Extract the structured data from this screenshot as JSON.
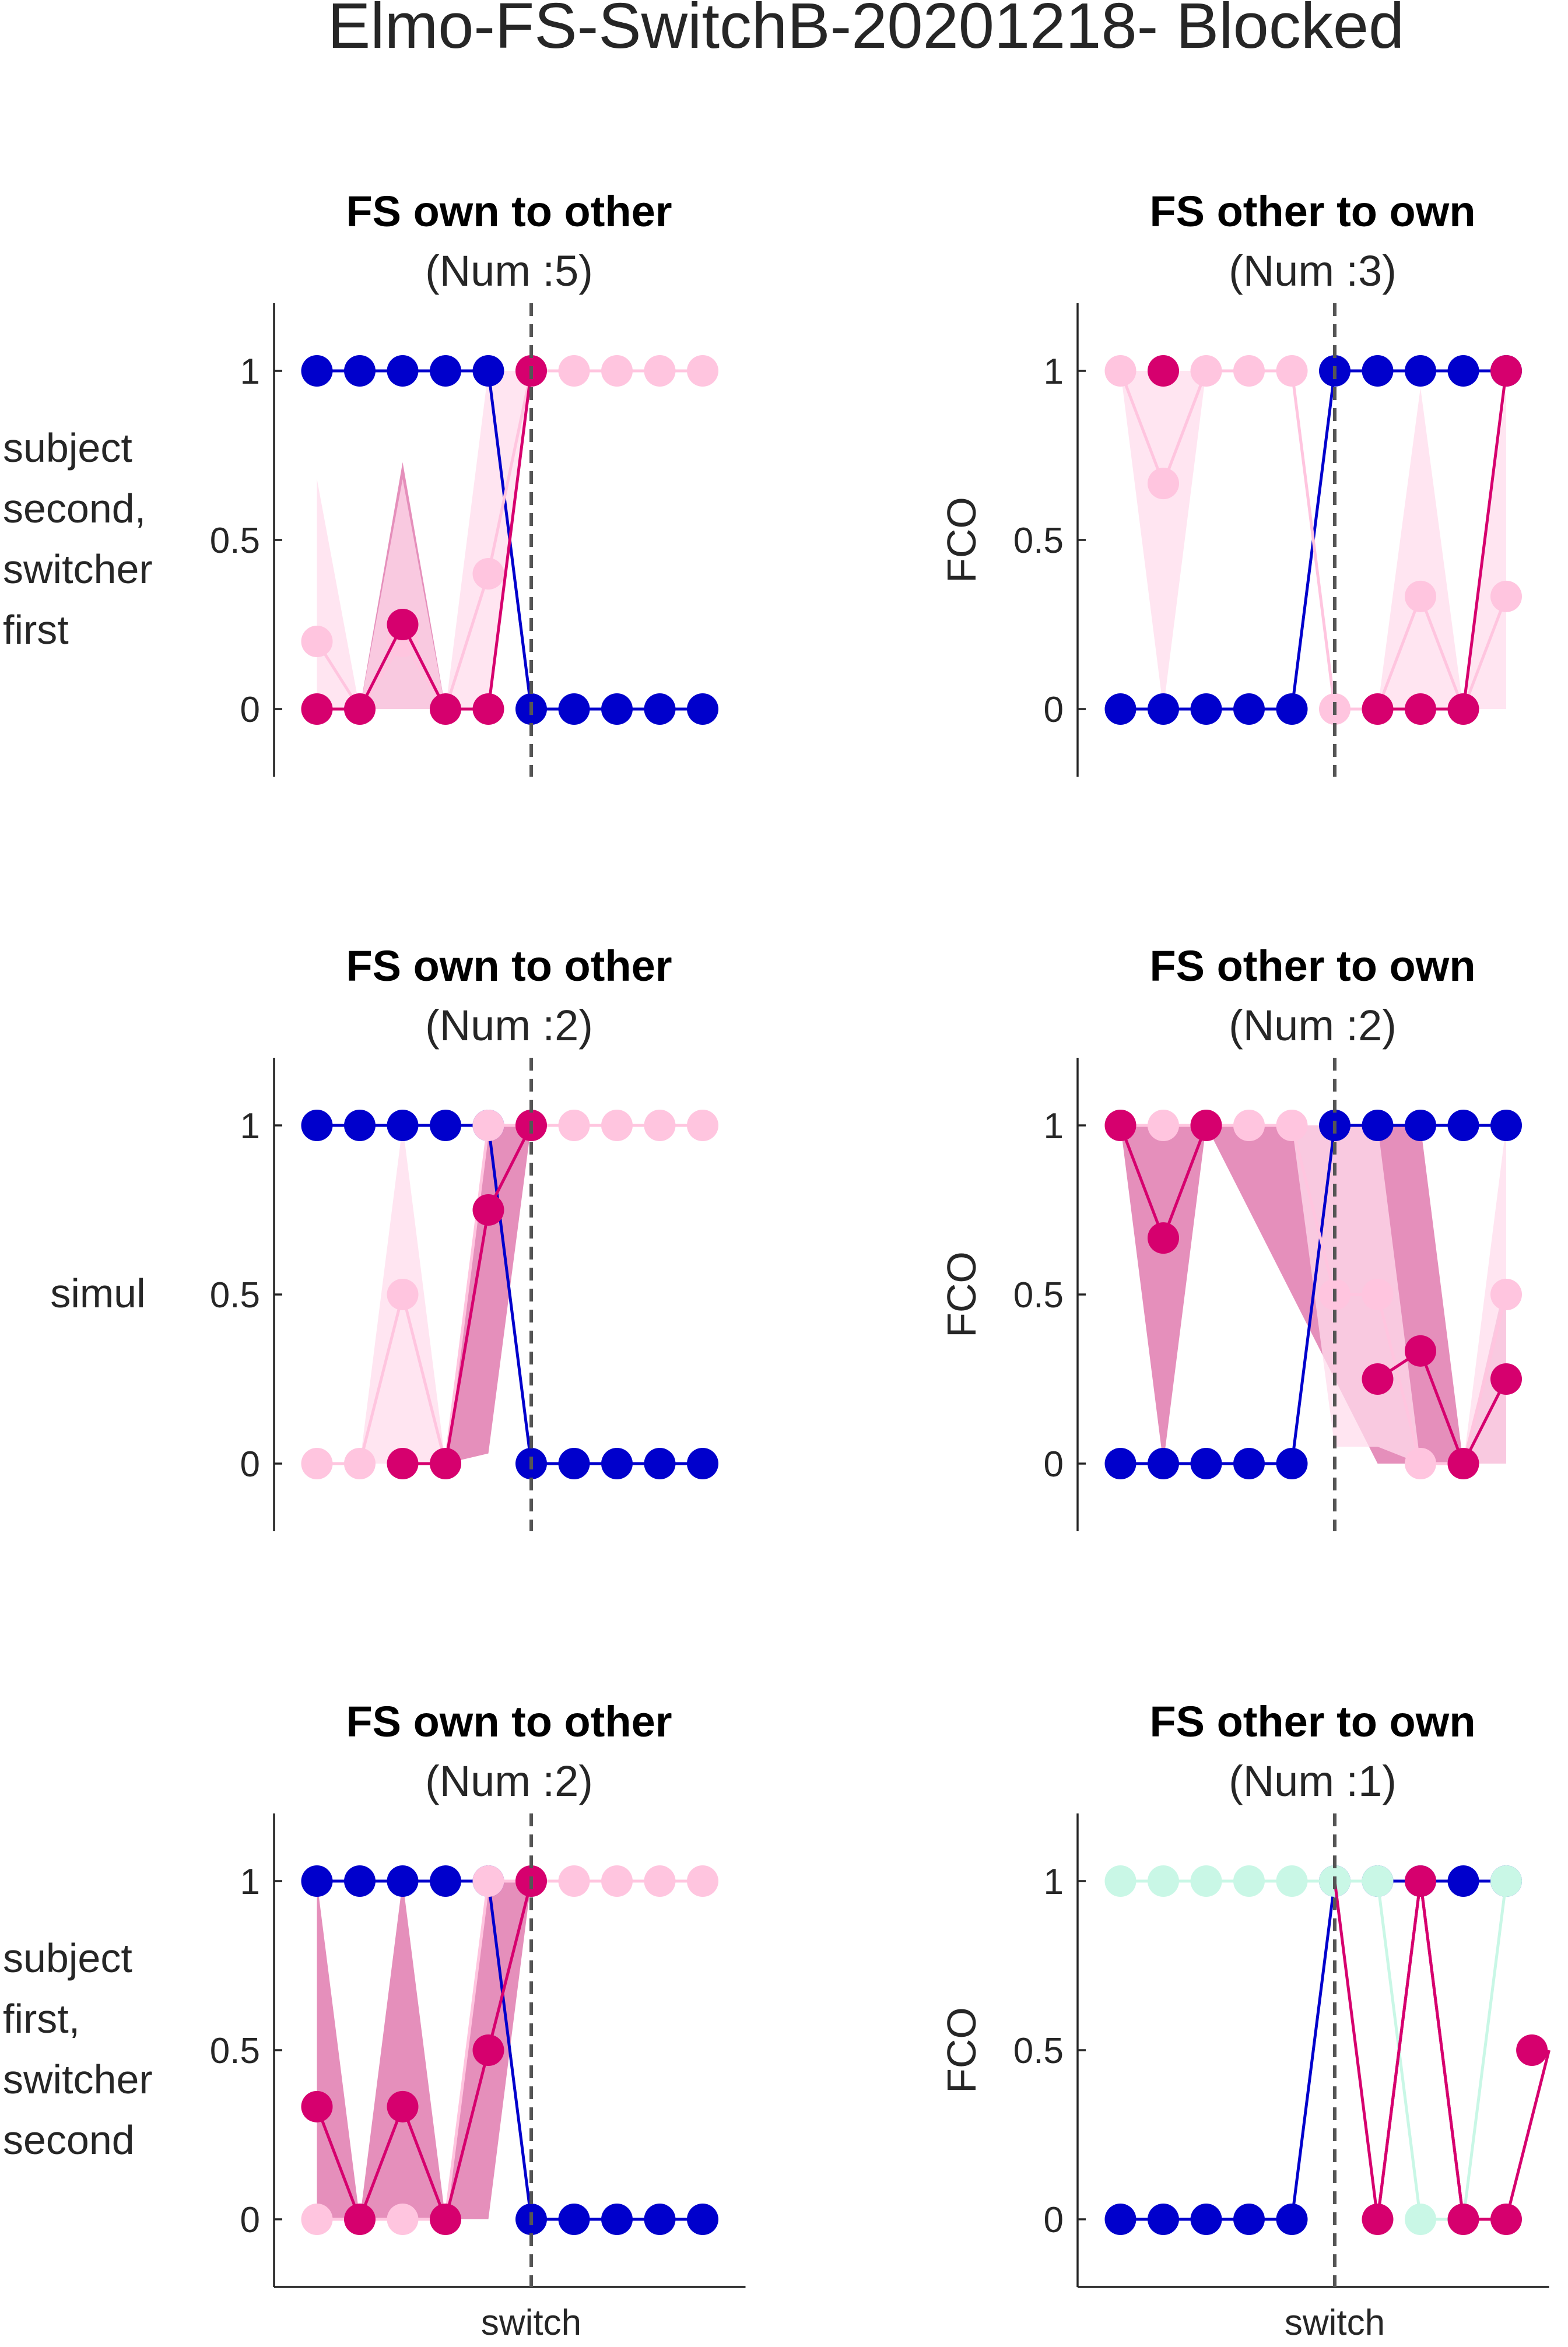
{
  "title": "Elmo-FS-SwitchB-20201218- Blocked",
  "colors": {
    "blue": "#0000cc",
    "magenta": "#d6006e",
    "magenta_shade": "#dc6aa4",
    "pink": "#ffc5df",
    "pink_shade": "#ffdcec",
    "mint": "#c9f7e6",
    "mint_shade": "#e4fbf2",
    "switch_line": "#555555",
    "axis": "#262626"
  },
  "row_labels": [
    [
      "subject",
      "second,",
      "switcher",
      "first"
    ],
    [
      "simul"
    ],
    [
      "subject",
      "first,",
      "switcher",
      "second"
    ]
  ],
  "chart_data": [
    {
      "type": "line",
      "row": 0,
      "col": 0,
      "title": "FS own to other",
      "subtitle": "(Num :5)",
      "ylabel": "",
      "xlabel": "",
      "ylim": [
        -0.2,
        1.2
      ],
      "xlim": [
        0,
        11
      ],
      "yticks": [
        "0",
        "0.5",
        "1"
      ],
      "switch_x": 6,
      "series": [
        {
          "color": "blue",
          "x": [
            1,
            2,
            3,
            4,
            5,
            6,
            7,
            8,
            9,
            10
          ],
          "y": [
            1,
            1,
            1,
            1,
            1,
            0,
            0,
            0,
            0,
            0
          ]
        },
        {
          "color": "magenta",
          "x": [
            1,
            2,
            3,
            4,
            5,
            6
          ],
          "y": [
            0,
            0,
            0.25,
            0,
            0,
            1
          ],
          "band_lo": [
            0,
            0,
            0,
            0,
            0,
            1
          ],
          "band_hi": [
            0,
            0,
            0.73,
            0,
            0,
            1
          ],
          "shade": "magenta_shade"
        },
        {
          "color": "pink",
          "x": [
            1,
            2,
            3,
            4,
            5,
            6,
            7,
            8,
            9,
            10
          ],
          "y": [
            0.2,
            0,
            0.2,
            0,
            0.4,
            1,
            1,
            1,
            1,
            1
          ],
          "band_lo": [
            0,
            0,
            0,
            0,
            0,
            1,
            1,
            1,
            1,
            1
          ],
          "band_hi": [
            0.68,
            0,
            0.68,
            0,
            1,
            1,
            1,
            1,
            1,
            1
          ],
          "shade": "pink_shade"
        }
      ]
    },
    {
      "type": "line",
      "row": 0,
      "col": 1,
      "title": "FS other to own",
      "subtitle": "(Num :3)",
      "ylabel": "FCO",
      "xlabel": "",
      "ylim": [
        -0.2,
        1.2
      ],
      "xlim": [
        0,
        11
      ],
      "yticks": [
        "0",
        "0.5",
        "1"
      ],
      "switch_x": 6,
      "series": [
        {
          "color": "blue",
          "x": [
            1,
            2,
            3,
            4,
            5,
            6,
            7,
            8,
            9,
            10
          ],
          "y": [
            0,
            0,
            0,
            0,
            0,
            1,
            1,
            1,
            1,
            1
          ]
        },
        {
          "color": "magenta",
          "x": [
            2,
            7,
            8,
            9,
            10
          ],
          "y": [
            1,
            0,
            0,
            0,
            1
          ],
          "breaks_after": [
            0
          ]
        },
        {
          "color": "pink",
          "x": [
            1,
            2,
            3,
            4,
            5,
            6,
            7,
            8,
            9,
            10
          ],
          "y": [
            1,
            0.667,
            1,
            1,
            1,
            0,
            0,
            0.333,
            0,
            0.333
          ],
          "band_lo": [
            1,
            0,
            1,
            1,
            1,
            0,
            0,
            0,
            0,
            0
          ],
          "band_hi": [
            1,
            1,
            1,
            1,
            1,
            0,
            0,
            0.95,
            0,
            0.95
          ],
          "shade": "pink_shade"
        }
      ]
    },
    {
      "type": "line",
      "row": 1,
      "col": 0,
      "title": "FS own to other",
      "subtitle": "(Num :2)",
      "ylabel": "",
      "xlabel": "",
      "ylim": [
        -0.2,
        1.2
      ],
      "xlim": [
        0,
        11
      ],
      "yticks": [
        "0",
        "0.5",
        "1"
      ],
      "switch_x": 6,
      "series": [
        {
          "color": "blue",
          "x": [
            1,
            2,
            3,
            4,
            5,
            6,
            7,
            8,
            9,
            10
          ],
          "y": [
            1,
            1,
            1,
            1,
            1,
            0,
            0,
            0,
            0,
            0
          ]
        },
        {
          "color": "magenta",
          "x": [
            3,
            4,
            5,
            6
          ],
          "y": [
            0,
            0,
            0.75,
            1
          ],
          "band_lo": [
            0,
            0,
            0.03,
            1
          ],
          "band_hi": [
            0,
            0,
            1,
            1
          ],
          "shade": "magenta_shade"
        },
        {
          "color": "pink",
          "x": [
            1,
            2,
            3,
            4,
            5,
            6,
            7,
            8,
            9,
            10
          ],
          "y": [
            0,
            0,
            0.5,
            0,
            1,
            1,
            1,
            1,
            1,
            1
          ],
          "band_lo": [
            0,
            0,
            0,
            0,
            1,
            1,
            1,
            1,
            1,
            1
          ],
          "band_hi": [
            0,
            0,
            1,
            0,
            1,
            1,
            1,
            1,
            1,
            1
          ],
          "shade": "pink_shade"
        }
      ]
    },
    {
      "type": "line",
      "row": 1,
      "col": 1,
      "title": "FS other to own",
      "subtitle": "(Num :2)",
      "ylabel": "FCO",
      "xlabel": "",
      "ylim": [
        -0.2,
        1.2
      ],
      "xlim": [
        0,
        11
      ],
      "yticks": [
        "0",
        "0.5",
        "1"
      ],
      "switch_x": 6,
      "series": [
        {
          "color": "blue",
          "x": [
            1,
            2,
            3,
            4,
            5,
            6,
            7,
            8,
            9,
            10
          ],
          "y": [
            0,
            0,
            0,
            0,
            0,
            1,
            1,
            1,
            1,
            1
          ]
        },
        {
          "color": "magenta",
          "x": [
            1,
            2,
            3,
            7,
            8,
            9,
            10
          ],
          "y": [
            1,
            0.667,
            1,
            0.25,
            0.333,
            0,
            0.25
          ],
          "band_lo": [
            1,
            0,
            1,
            0,
            0,
            0,
            0
          ],
          "band_hi": [
            1,
            1,
            1,
            1,
            1,
            0,
            0.55
          ],
          "shade": "magenta_shade",
          "breaks_after": [
            2
          ],
          "shade_breaks_after": []
        },
        {
          "color": "pink",
          "x": [
            1,
            2,
            3,
            4,
            5,
            6,
            7,
            8,
            9,
            10
          ],
          "y": [
            1,
            1,
            1,
            1,
            1,
            0.5,
            0.5,
            0,
            0,
            0.5
          ],
          "band_lo": [
            1,
            1,
            1,
            1,
            1,
            0.05,
            0.05,
            0,
            0,
            0
          ],
          "band_hi": [
            1,
            1,
            1,
            1,
            1,
            1,
            1,
            0,
            0,
            1
          ],
          "shade": "pink_shade"
        }
      ]
    },
    {
      "type": "line",
      "row": 2,
      "col": 0,
      "title": "FS own to other",
      "subtitle": "(Num :2)",
      "ylabel": "",
      "xlabel": "switch",
      "ylim": [
        -0.2,
        1.2
      ],
      "xlim": [
        0,
        11
      ],
      "yticks": [
        "0",
        "0.5",
        "1"
      ],
      "switch_x": 6,
      "series": [
        {
          "color": "blue",
          "x": [
            1,
            2,
            3,
            4,
            5,
            6,
            7,
            8,
            9,
            10
          ],
          "y": [
            1,
            1,
            1,
            1,
            1,
            0,
            0,
            0,
            0,
            0
          ]
        },
        {
          "color": "magenta",
          "x": [
            1,
            2,
            3,
            4,
            5,
            6
          ],
          "y": [
            0.333,
            0,
            0.333,
            0,
            0.5,
            1
          ],
          "band_lo": [
            0,
            0,
            0,
            0,
            0,
            1
          ],
          "band_hi": [
            1,
            0,
            1,
            0,
            1,
            1
          ],
          "shade": "magenta_shade"
        },
        {
          "color": "pink",
          "x": [
            1,
            2,
            3,
            4,
            5,
            6,
            7,
            8,
            9,
            10
          ],
          "y": [
            0,
            0,
            0,
            0,
            1,
            1,
            1,
            1,
            1,
            1
          ]
        }
      ]
    },
    {
      "type": "line",
      "row": 2,
      "col": 1,
      "title": "FS other to own",
      "subtitle": "(Num :1)",
      "ylabel": "FCO",
      "xlabel": "switch",
      "ylim": [
        -0.2,
        1.2
      ],
      "xlim": [
        0,
        11
      ],
      "yticks": [
        "0",
        "0.5",
        "1"
      ],
      "switch_x": 6,
      "series": [
        {
          "color": "blue",
          "x": [
            1,
            2,
            3,
            4,
            5,
            6,
            7,
            8,
            9,
            10
          ],
          "y": [
            0,
            0,
            0,
            0,
            0,
            1,
            1,
            1,
            1,
            1
          ]
        },
        {
          "color": "mint",
          "x": [
            1,
            2,
            3,
            4,
            5,
            6,
            7,
            8,
            9,
            10
          ],
          "y": [
            1,
            1,
            1,
            1,
            1,
            1,
            1,
            0,
            0,
            1
          ]
        },
        {
          "color": "magenta",
          "x": [
            7,
            8,
            9,
            10,
            11
          ],
          "y": [
            0,
            1,
            0,
            0,
            0.5
          ]
        },
        {
          "color": "magenta",
          "x": [
            5,
            6
          ],
          "y": [
            0,
            1
          ],
          "no_markers": true,
          "no_line": true
        },
        {
          "color": "magenta",
          "x": [
            6,
            7,
            8,
            9
          ],
          "y": [
            1,
            0,
            1,
            0
          ],
          "no_markers": true
        }
      ]
    }
  ]
}
